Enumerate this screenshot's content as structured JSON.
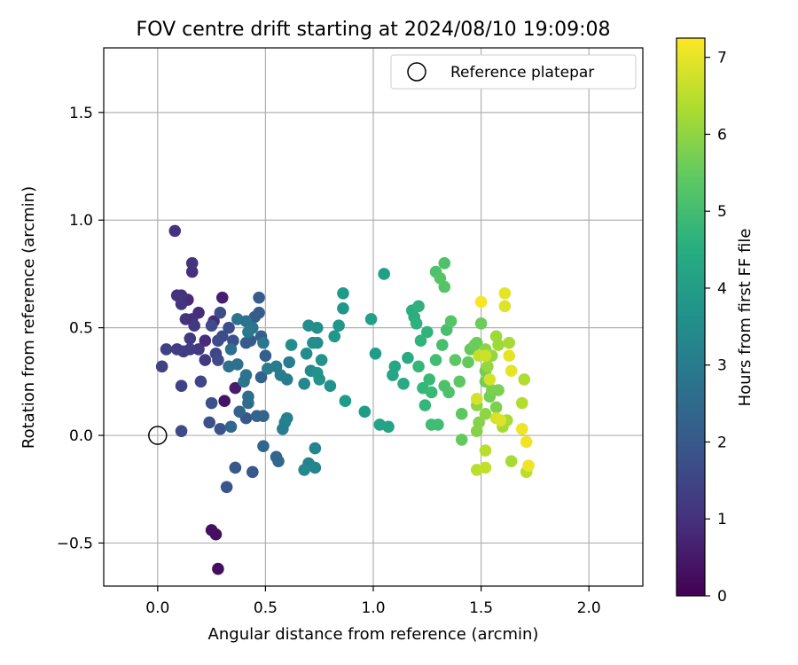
{
  "chart_data": {
    "type": "scatter",
    "title": "FOV centre drift starting at 2024/08/10 19:09:08",
    "xlabel": "Angular distance from reference (arcmin)",
    "ylabel": "Rotation from reference (arcmin)",
    "xlim": [
      -0.25,
      2.25
    ],
    "ylim": [
      -0.7,
      1.8
    ],
    "xticks": [
      0.0,
      0.5,
      1.0,
      1.5,
      2.0
    ],
    "xtick_labels": [
      "0.0",
      "0.5",
      "1.0",
      "1.5",
      "2.0"
    ],
    "yticks": [
      -0.5,
      0.0,
      0.5,
      1.0,
      1.5
    ],
    "ytick_labels": [
      "−0.5",
      "0.0",
      "0.5",
      "1.0",
      "1.5"
    ],
    "grid": true,
    "legend": {
      "position": "top-right",
      "entries": [
        {
          "label": "Reference platepar",
          "marker": "open-circle"
        }
      ]
    },
    "reference_point": {
      "x": 0.0,
      "y": 0.0
    },
    "colorbar": {
      "label": "Hours from first FF file",
      "colormap": "viridis",
      "range": [
        0,
        7.25
      ],
      "ticks": [
        0,
        1,
        2,
        3,
        4,
        5,
        6,
        7
      ],
      "tick_labels": [
        "0",
        "1",
        "2",
        "3",
        "4",
        "5",
        "6",
        "7"
      ]
    },
    "points": [
      [
        0.25,
        -0.44,
        0.3
      ],
      [
        0.27,
        -0.46,
        0.3
      ],
      [
        0.28,
        -0.62,
        0.25
      ],
      [
        0.31,
        0.16,
        0.4
      ],
      [
        0.36,
        0.22,
        0.55
      ],
      [
        0.3,
        0.64,
        0.6
      ],
      [
        0.14,
        0.63,
        0.9
      ],
      [
        0.19,
        0.57,
        0.9
      ],
      [
        0.22,
        0.44,
        0.9
      ],
      [
        0.26,
        0.53,
        0.9
      ],
      [
        0.09,
        0.65,
        1.1
      ],
      [
        0.11,
        0.61,
        1.1
      ],
      [
        0.13,
        0.54,
        1.1
      ],
      [
        0.16,
        0.54,
        1.0
      ],
      [
        0.16,
        0.76,
        1.0
      ],
      [
        0.16,
        0.8,
        1.1
      ],
      [
        0.08,
        0.95,
        1.1
      ],
      [
        0.11,
        0.65,
        1.1
      ],
      [
        0.15,
        0.45,
        1.2
      ],
      [
        0.17,
        0.51,
        1.2
      ],
      [
        0.19,
        0.4,
        1.2
      ],
      [
        0.22,
        0.35,
        1.2
      ],
      [
        0.09,
        0.4,
        1.3
      ],
      [
        0.12,
        0.39,
        1.3
      ],
      [
        0.15,
        0.4,
        1.3
      ],
      [
        0.04,
        0.4,
        1.4
      ],
      [
        0.02,
        0.32,
        1.4
      ],
      [
        0.11,
        0.23,
        1.4
      ],
      [
        0.2,
        0.25,
        1.5
      ],
      [
        0.27,
        0.38,
        1.5
      ],
      [
        0.28,
        0.44,
        1.6
      ],
      [
        0.25,
        0.51,
        1.6
      ],
      [
        0.28,
        0.35,
        1.6
      ],
      [
        0.11,
        0.02,
        1.6
      ],
      [
        0.29,
        0.57,
        1.7
      ],
      [
        0.33,
        0.5,
        1.7
      ],
      [
        0.3,
        0.46,
        1.7
      ],
      [
        0.35,
        0.44,
        1.8
      ],
      [
        0.25,
        0.15,
        1.8
      ],
      [
        0.24,
        0.06,
        1.8
      ],
      [
        0.29,
        0.03,
        1.9
      ],
      [
        0.32,
        -0.24,
        1.9
      ],
      [
        0.36,
        -0.15,
        2.0
      ],
      [
        0.44,
        -0.17,
        2.0
      ],
      [
        0.41,
        0.08,
        2.0
      ],
      [
        0.41,
        0.43,
        2.1
      ],
      [
        0.43,
        0.44,
        2.1
      ],
      [
        0.45,
        0.55,
        2.1
      ],
      [
        0.47,
        0.57,
        2.1
      ],
      [
        0.47,
        0.64,
        2.1
      ],
      [
        0.48,
        0.46,
        2.2
      ],
      [
        0.5,
        0.37,
        2.2
      ],
      [
        0.48,
        0.27,
        2.2
      ],
      [
        0.49,
        0.09,
        2.3
      ],
      [
        0.46,
        0.09,
        2.3
      ],
      [
        0.38,
        0.11,
        2.3
      ],
      [
        0.34,
        0.04,
        2.4
      ],
      [
        0.49,
        -0.05,
        2.4
      ],
      [
        0.56,
        -0.12,
        2.4
      ],
      [
        0.55,
        -0.1,
        2.4
      ],
      [
        0.42,
        0.15,
        2.5
      ],
      [
        0.42,
        0.18,
        2.6
      ],
      [
        0.34,
        0.4,
        2.6
      ],
      [
        0.33,
        0.32,
        2.7
      ],
      [
        0.37,
        0.33,
        2.7
      ],
      [
        0.41,
        0.28,
        2.8
      ],
      [
        0.4,
        0.25,
        2.8
      ],
      [
        0.37,
        0.54,
        2.8
      ],
      [
        0.41,
        0.53,
        2.8
      ],
      [
        0.44,
        0.5,
        2.8
      ],
      [
        0.42,
        0.48,
        2.9
      ],
      [
        0.49,
        0.43,
        2.9
      ],
      [
        0.51,
        0.31,
        3.0
      ],
      [
        0.55,
        0.32,
        3.0
      ],
      [
        0.57,
        0.28,
        3.0
      ],
      [
        0.6,
        0.26,
        3.0
      ],
      [
        0.61,
        0.34,
        3.1
      ],
      [
        0.59,
        0.06,
        3.1
      ],
      [
        0.58,
        0.03,
        3.1
      ],
      [
        0.6,
        0.08,
        3.2
      ],
      [
        0.7,
        -0.13,
        3.2
      ],
      [
        0.73,
        -0.06,
        3.3
      ],
      [
        0.73,
        -0.15,
        3.3
      ],
      [
        0.68,
        -0.16,
        3.4
      ],
      [
        0.68,
        0.24,
        3.4
      ],
      [
        0.71,
        0.3,
        3.4
      ],
      [
        0.62,
        0.42,
        3.5
      ],
      [
        0.69,
        0.38,
        3.5
      ],
      [
        0.7,
        0.51,
        3.5
      ],
      [
        0.74,
        0.43,
        3.5
      ],
      [
        0.72,
        0.43,
        3.6
      ],
      [
        0.74,
        0.5,
        3.6
      ],
      [
        0.74,
        0.29,
        3.7
      ],
      [
        0.75,
        0.26,
        3.7
      ],
      [
        0.8,
        0.23,
        3.7
      ],
      [
        0.76,
        0.35,
        3.7
      ],
      [
        0.82,
        0.46,
        3.8
      ],
      [
        0.84,
        0.51,
        3.8
      ],
      [
        0.86,
        0.59,
        3.8
      ],
      [
        0.86,
        0.66,
        3.9
      ],
      [
        0.87,
        0.16,
        3.9
      ],
      [
        0.96,
        0.11,
        4.0
      ],
      [
        1.01,
        0.38,
        4.0
      ],
      [
        0.99,
        0.54,
        4.1
      ],
      [
        1.05,
        0.75,
        4.1
      ],
      [
        1.03,
        0.05,
        4.2
      ],
      [
        1.07,
        0.04,
        4.2
      ],
      [
        1.09,
        0.28,
        4.3
      ],
      [
        1.1,
        0.32,
        4.3
      ],
      [
        1.14,
        0.24,
        4.4
      ],
      [
        1.16,
        0.36,
        4.4
      ],
      [
        1.18,
        0.58,
        4.5
      ],
      [
        1.19,
        0.55,
        4.5
      ],
      [
        1.21,
        0.6,
        4.6
      ],
      [
        1.2,
        0.52,
        4.6
      ],
      [
        1.22,
        0.44,
        4.7
      ],
      [
        1.25,
        0.48,
        4.7
      ],
      [
        1.21,
        0.32,
        4.8
      ],
      [
        1.23,
        0.22,
        4.8
      ],
      [
        1.24,
        0.14,
        4.8
      ],
      [
        1.27,
        0.2,
        4.9
      ],
      [
        1.26,
        0.26,
        4.9
      ],
      [
        1.27,
        0.05,
        5.0
      ],
      [
        1.3,
        0.05,
        5.0
      ],
      [
        1.29,
        0.35,
        5.0
      ],
      [
        1.32,
        0.42,
        5.1
      ],
      [
        1.34,
        0.49,
        5.1
      ],
      [
        1.33,
        0.23,
        5.2
      ],
      [
        1.35,
        0.2,
        5.2
      ],
      [
        1.29,
        0.76,
        5.2
      ],
      [
        1.33,
        0.8,
        5.2
      ],
      [
        1.31,
        0.73,
        5.3
      ],
      [
        1.33,
        0.69,
        5.3
      ],
      [
        1.36,
        0.53,
        5.3
      ],
      [
        1.38,
        0.35,
        5.4
      ],
      [
        1.4,
        0.25,
        5.4
      ],
      [
        1.41,
        0.1,
        5.4
      ],
      [
        1.41,
        -0.02,
        5.5
      ],
      [
        1.44,
        0.34,
        5.5
      ],
      [
        1.45,
        0.4,
        5.5
      ],
      [
        1.48,
        0.43,
        5.6
      ],
      [
        1.5,
        0.52,
        5.6
      ],
      [
        1.47,
        0.42,
        5.6
      ],
      [
        1.52,
        0.3,
        5.7
      ],
      [
        1.52,
        0.25,
        5.7
      ],
      [
        1.54,
        0.18,
        5.7
      ],
      [
        1.55,
        0.21,
        5.8
      ],
      [
        1.57,
        0.13,
        5.8
      ],
      [
        1.58,
        0.21,
        5.8
      ],
      [
        1.49,
        0.06,
        5.9
      ],
      [
        1.48,
        0.02,
        5.9
      ],
      [
        1.52,
        0.1,
        6.0
      ],
      [
        1.48,
        0.14,
        6.0
      ],
      [
        1.52,
        0.4,
        6.0
      ],
      [
        1.55,
        0.37,
        6.1
      ],
      [
        1.53,
        0.32,
        6.1
      ],
      [
        1.57,
        0.46,
        6.2
      ],
      [
        1.58,
        0.42,
        6.2
      ],
      [
        1.63,
        0.43,
        6.3
      ],
      [
        1.6,
        0.04,
        6.3
      ],
      [
        1.62,
        0.07,
        6.3
      ],
      [
        1.64,
        -0.12,
        6.3
      ],
      [
        1.69,
        0.15,
        6.4
      ],
      [
        1.7,
        0.26,
        6.4
      ],
      [
        1.71,
        -0.17,
        6.5
      ],
      [
        1.48,
        -0.16,
        6.5
      ],
      [
        1.52,
        -0.07,
        6.5
      ],
      [
        1.52,
        -0.15,
        6.6
      ],
      [
        1.49,
        0.37,
        6.6
      ],
      [
        1.52,
        0.37,
        6.7
      ],
      [
        1.54,
        0.26,
        6.8
      ],
      [
        1.48,
        0.17,
        6.8
      ],
      [
        1.57,
        0.08,
        6.8
      ],
      [
        1.59,
        0.07,
        6.9
      ],
      [
        1.61,
        0.6,
        6.9
      ],
      [
        1.61,
        0.66,
        7.0
      ],
      [
        1.63,
        0.37,
        7.0
      ],
      [
        1.64,
        0.3,
        7.0
      ],
      [
        1.69,
        0.03,
        7.1
      ],
      [
        1.71,
        -0.03,
        7.1
      ],
      [
        1.72,
        -0.14,
        7.1
      ],
      [
        1.5,
        0.62,
        7.2
      ]
    ]
  }
}
